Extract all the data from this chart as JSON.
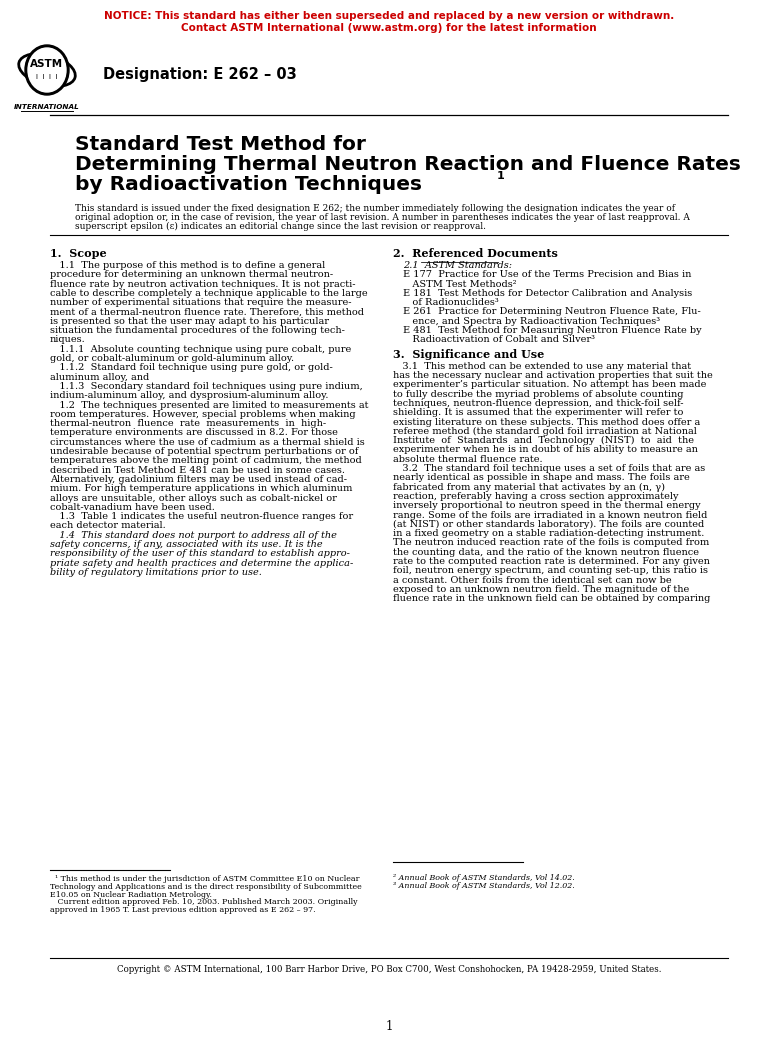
{
  "notice_line1": "NOTICE: This standard has either been superseded and replaced by a new version or withdrawn.",
  "notice_line2": "Contact ASTM International (www.astm.org) for the latest information",
  "notice_color": "#CC0000",
  "designation": "Designation: E 262 – 03",
  "title_line1": "Standard Test Method for",
  "title_line2": "Determining Thermal Neutron Reaction and Fluence Rates",
  "title_line3": "by Radioactivation Techniques",
  "title_superscript": "1",
  "preamble_line1": "This standard is issued under the fixed designation E 262; the number immediately following the designation indicates the year of",
  "preamble_line2": "original adoption or, in the case of revision, the year of last revision. A number in parentheses indicates the year of last reapproval. A",
  "preamble_line3": "superscript epsilon (ε) indicates an editorial change since the last revision or reapproval.",
  "section1_head": "1.  Scope",
  "section1_body": [
    "   1.1  The purpose of this method is to define a general",
    "procedure for determining an unknown thermal neutron-",
    "fluence rate by neutron activation techniques. It is not practi-",
    "cable to describe completely a technique applicable to the large",
    "number of experimental situations that require the measure-",
    "ment of a thermal-neutron fluence rate. Therefore, this method",
    "is presented so that the user may adapt to his particular",
    "situation the fundamental procedures of the following tech-",
    "niques.",
    "   1.1.1  Absolute counting technique using pure cobalt, pure",
    "gold, or cobalt-aluminum or gold-aluminum alloy.",
    "   1.1.2  Standard foil technique using pure gold, or gold-",
    "aluminum alloy, and",
    "   1.1.3  Secondary standard foil techniques using pure indium,",
    "indium-aluminum alloy, and dysprosium-aluminum alloy.",
    "   1.2  The techniques presented are limited to measurements at",
    "room temperatures. However, special problems when making",
    "thermal-neutron  fluence  rate  measurements  in  high-",
    "temperature environments are discussed in 8.2. For those",
    "circumstances where the use of cadmium as a thermal shield is",
    "undesirable because of potential spectrum perturbations or of",
    "temperatures above the melting point of cadmium, the method",
    "described in Test Method E 481 can be used in some cases.",
    "Alternatively, gadolinium filters may be used instead of cad-",
    "mium. For high temperature applications in which aluminum",
    "alloys are unsuitable, other alloys such as cobalt-nickel or",
    "cobalt-vanadium have been used.",
    "   1.3  Table 1 indicates the useful neutron-fluence ranges for",
    "each detector material."
  ],
  "section1_italic": [
    "   1.4  This standard does not purport to address all of the",
    "safety concerns, if any, associated with its use. It is the",
    "responsibility of the user of this standard to establish appro-",
    "priate safety and health practices and determine the applica-",
    "bility of regulatory limitations prior to use."
  ],
  "section2_head": "2.  Referenced Documents",
  "section2_body": [
    "   2.1  ASTM Standards:",
    "E 177  Practice for Use of the Terms Precision and Bias in",
    "   ASTM Test Methods²",
    "E 181  Test Methods for Detector Calibration and Analysis",
    "   of Radionuclides³",
    "E 261  Practice for Determining Neutron Fluence Rate, Flu-",
    "   ence, and Spectra by Radioactivation Techniques³",
    "E 481  Test Method for Measuring Neutron Fluence Rate by",
    "   Radioactivation of Cobalt and Silver³"
  ],
  "section3_head": "3.  Significance and Use",
  "section3_body": [
    "   3.1  This method can be extended to use any material that",
    "has the necessary nuclear and activation properties that suit the",
    "experimenter’s particular situation. No attempt has been made",
    "to fully describe the myriad problems of absolute counting",
    "techniques, neutron-fluence depression, and thick-foil self-",
    "shielding. It is assumed that the experimenter will refer to",
    "existing literature on these subjects. This method does offer a",
    "referee method (the standard gold foil irradiation at National",
    "Institute  of  Standards  and  Technology  (NIST)  to  aid  the",
    "experimenter when he is in doubt of his ability to measure an",
    "absolute thermal fluence rate.",
    "   3.2  The standard foil technique uses a set of foils that are as",
    "nearly identical as possible in shape and mass. The foils are",
    "fabricated from any material that activates by an (n, γ)",
    "reaction, preferably having a cross section approximately",
    "inversely proportional to neutron speed in the thermal energy",
    "range. Some of the foils are irradiated in a known neutron field",
    "(at NIST) or other standards laboratory). The foils are counted",
    "in a fixed geometry on a stable radiation-detecting instrument.",
    "The neutron induced reaction rate of the foils is computed from",
    "the counting data, and the ratio of the known neutron fluence",
    "rate to the computed reaction rate is determined. For any given",
    "foil, neutron energy spectrum, and counting set-up, this ratio is",
    "a constant. Other foils from the identical set can now be",
    "exposed to an unknown neutron field. The magnitude of the",
    "fluence rate in the unknown field can be obtained by comparing"
  ],
  "footnote1_lines": [
    "  ¹ This method is under the jurisdiction of ASTM Committee E10 on Nuclear",
    "Technology and Applications and is the direct responsibility of Subcommittee",
    "E10.05 on Nuclear Radiation Metrology.",
    "   Current edition approved Feb. 10, 2003. Published March 2003. Originally",
    "approved in 1965 T. Last previous edition approved as E 262 – 97."
  ],
  "footnote2": "² Annual Book of ASTM Standards, Vol 14.02.",
  "footnote3": "³ Annual Book of ASTM Standards, Vol 12.02.",
  "copyright": "Copyright © ASTM International, 100 Barr Harbor Drive, PO Box C700, West Conshohocken, PA 19428-2959, United States.",
  "page_number": "1",
  "bg_color": "#ffffff",
  "text_color": "#000000"
}
